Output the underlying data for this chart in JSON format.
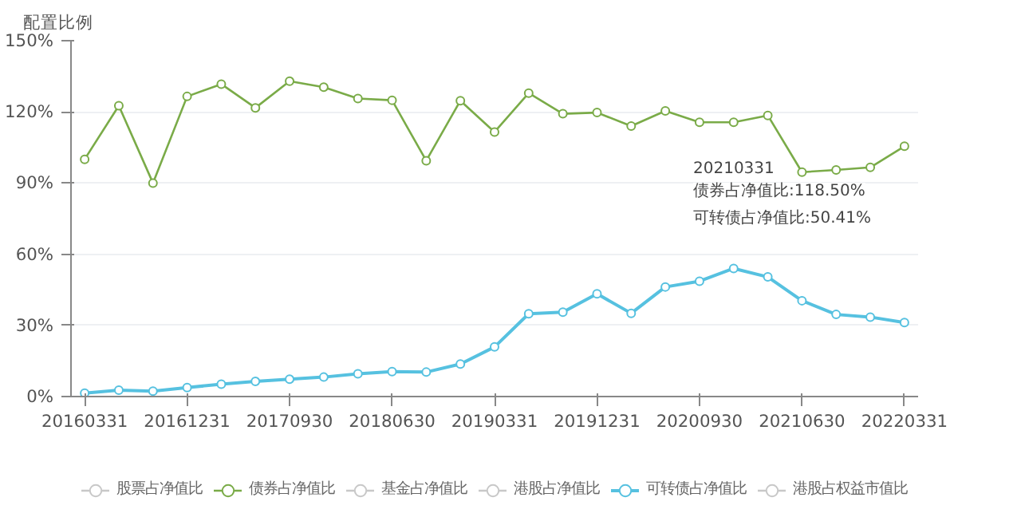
{
  "chart_data": {
    "type": "line",
    "ylabel": "配置比例",
    "categories": [
      "20160331",
      null,
      null,
      "20161231",
      null,
      null,
      "20170930",
      null,
      null,
      "20180630",
      null,
      null,
      "20190331",
      null,
      null,
      "20191231",
      null,
      null,
      "20200930",
      null,
      null,
      "20210630",
      null,
      null,
      "20220331"
    ],
    "ylim": [
      0,
      150
    ],
    "yticks": [
      {
        "value": 0,
        "label": "0%"
      },
      {
        "value": 30,
        "label": "30%"
      },
      {
        "value": 60,
        "label": "60%"
      },
      {
        "value": 90,
        "label": "90%"
      },
      {
        "value": 120,
        "label": "120%"
      },
      {
        "value": 150,
        "label": "150%"
      }
    ],
    "series": [
      {
        "name": "股票占净值比",
        "color": "#c8c8c8",
        "values": [
          null,
          null,
          null,
          null,
          null,
          null,
          null,
          null,
          null,
          null,
          null,
          null,
          null,
          null,
          null,
          null,
          null,
          null,
          null,
          null,
          null,
          null,
          null,
          null,
          null
        ]
      },
      {
        "name": "债券占净值比",
        "color": "#7aab48",
        "values": [
          100,
          122.6,
          90,
          126.5,
          131.7,
          121.7,
          132.9,
          130.4,
          125.6,
          124.9,
          99.4,
          124.7,
          111.5,
          127.9,
          119.2,
          119.7,
          114,
          120.4,
          115.6,
          115.6,
          118.5,
          94.6,
          95.5,
          96.6,
          105.5
        ]
      },
      {
        "name": "基金占净值比",
        "color": "#c8c8c8",
        "values": [
          null,
          null,
          null,
          null,
          null,
          null,
          null,
          null,
          null,
          null,
          null,
          null,
          null,
          null,
          null,
          null,
          null,
          null,
          null,
          null,
          null,
          null,
          null,
          null,
          null
        ]
      },
      {
        "name": "港股占净值比",
        "color": "#c8c8c8",
        "values": [
          null,
          null,
          null,
          null,
          null,
          null,
          null,
          null,
          null,
          null,
          null,
          null,
          null,
          null,
          null,
          null,
          null,
          null,
          null,
          null,
          null,
          null,
          null,
          null,
          null
        ]
      },
      {
        "name": "可转债占净值比",
        "color": "#56c1e0",
        "values": [
          1.4,
          2.7,
          2.3,
          3.8,
          5.2,
          6.4,
          7.3,
          8.2,
          9.6,
          10.5,
          10.3,
          13.7,
          20.9,
          34.9,
          35.6,
          43.3,
          35.1,
          46.2,
          48.6,
          54,
          50.41,
          40.4,
          34.6,
          33.5,
          31.2
        ]
      },
      {
        "name": "港股占权益市值比",
        "color": "#c8c8c8",
        "values": [
          null,
          null,
          null,
          null,
          null,
          null,
          null,
          null,
          null,
          null,
          null,
          null,
          null,
          null,
          null,
          null,
          null,
          null,
          null,
          null,
          null,
          null,
          null,
          null,
          null
        ]
      }
    ],
    "annotations": [
      "20210331",
      "债券占净值比:118.50%",
      "可转债占净值比:50.41%"
    ],
    "grid": "y",
    "legend": "bottom",
    "marker": "circle",
    "line_style": "solid"
  }
}
